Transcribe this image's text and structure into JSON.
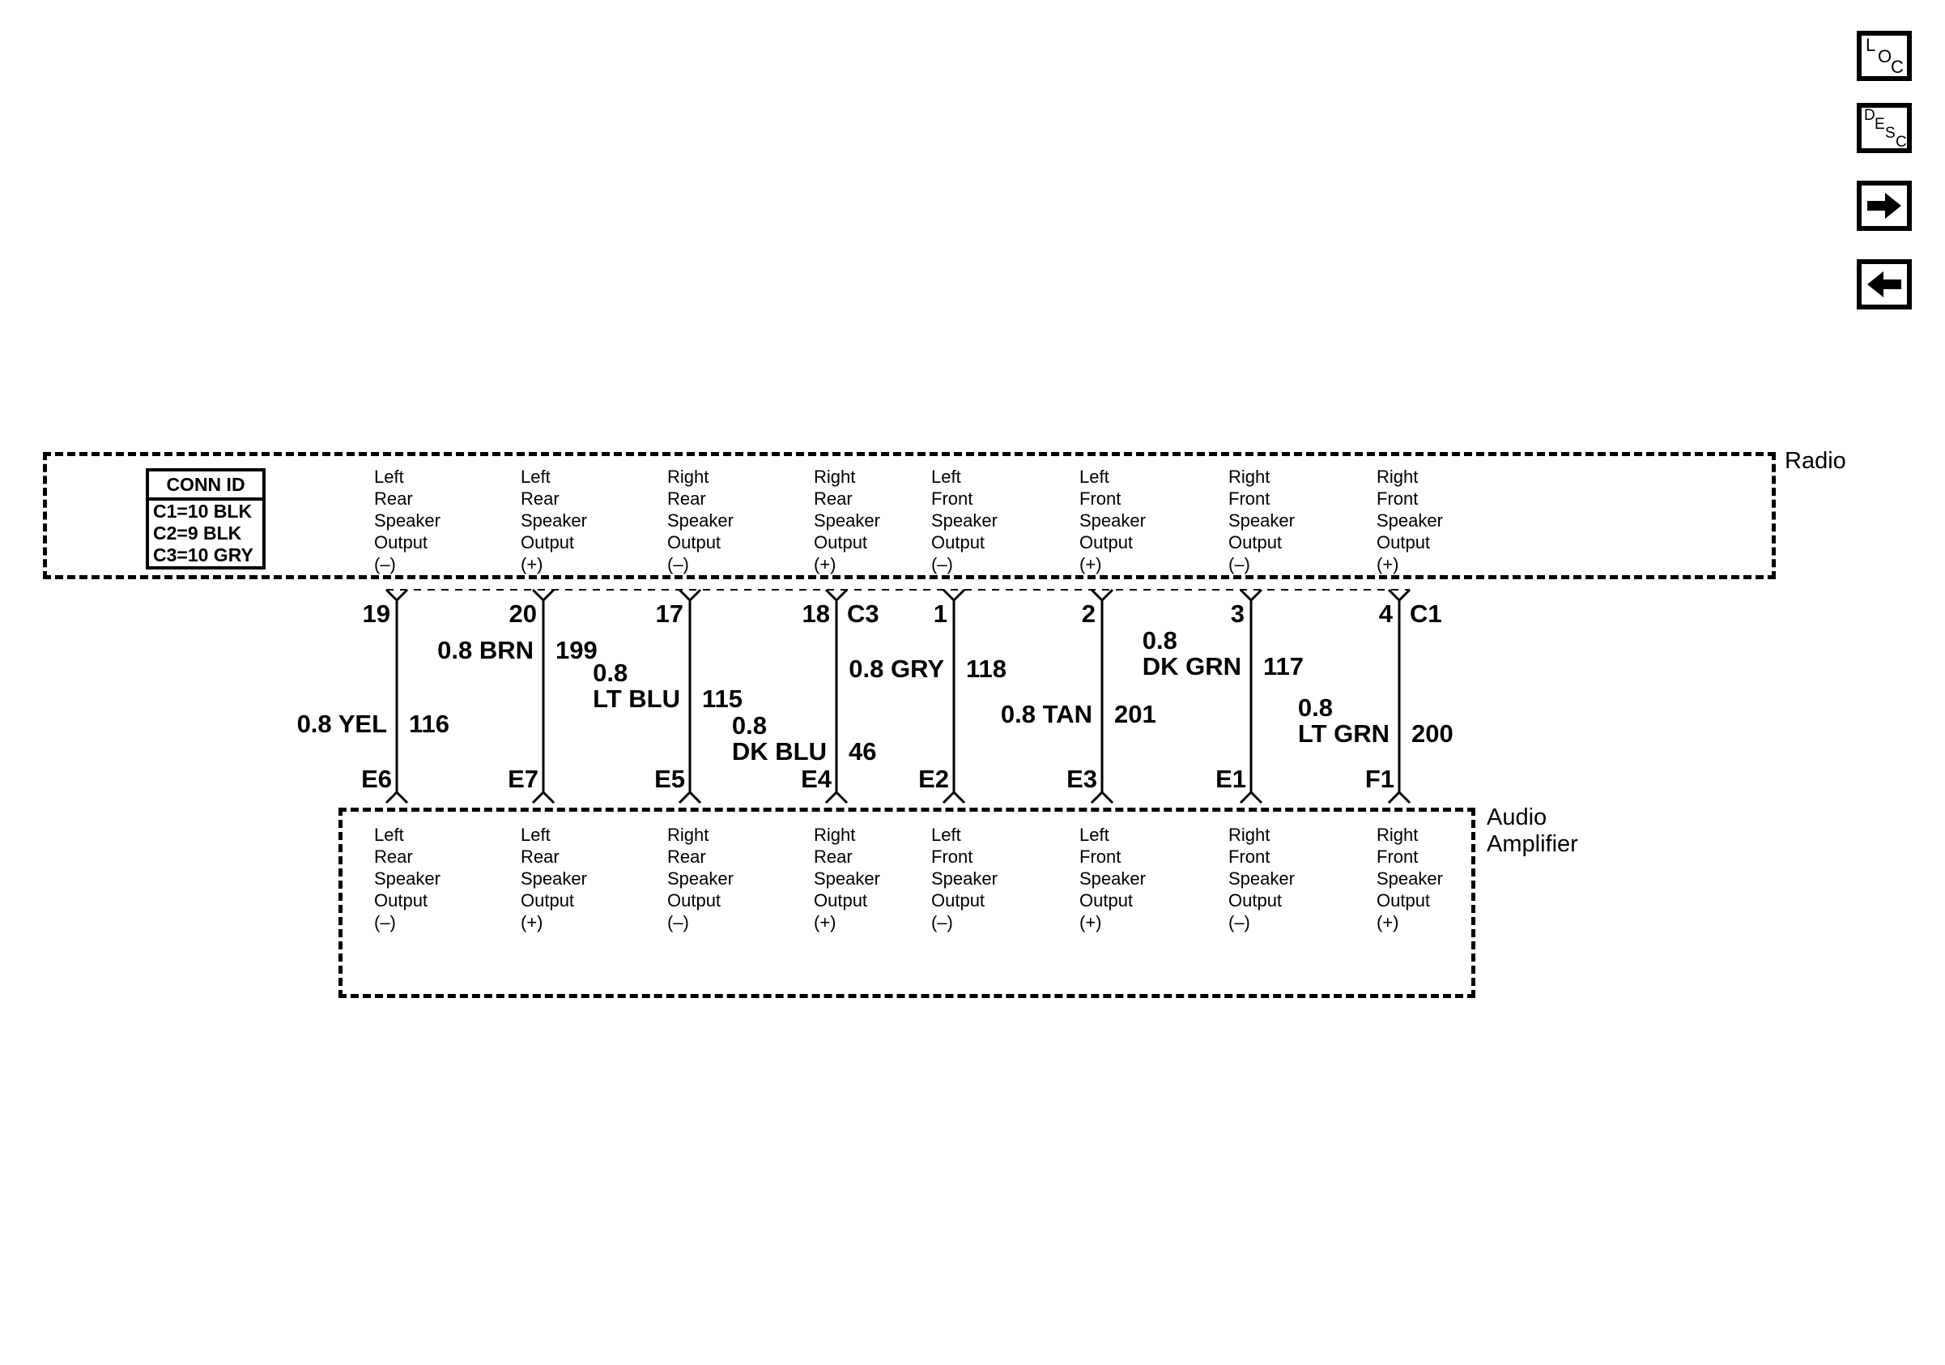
{
  "toolbar": {
    "loc_label": "LOC",
    "desc_label": "DESC",
    "loc_letters": [
      "L",
      "O",
      "C"
    ],
    "desc_letters": [
      "D",
      "E",
      "S",
      "C"
    ]
  },
  "radio": {
    "title": "Radio",
    "conn_id": {
      "header": "CONN ID",
      "rows": [
        "C1=10 BLK",
        "C2=9 BLK",
        "C3=10 GRY"
      ]
    },
    "columns": [
      {
        "lines": [
          "Left",
          "Rear",
          "Speaker",
          "Output",
          "(–)"
        ]
      },
      {
        "lines": [
          "Left",
          "Rear",
          "Speaker",
          "Output",
          "(+)"
        ]
      },
      {
        "lines": [
          "Right",
          "Rear",
          "Speaker",
          "Output",
          "(–)"
        ]
      },
      {
        "lines": [
          "Right",
          "Rear",
          "Speaker",
          "Output",
          "(+)"
        ]
      },
      {
        "lines": [
          "Left",
          "Front",
          "Speaker",
          "Output",
          "(–)"
        ]
      },
      {
        "lines": [
          "Left",
          "Front",
          "Speaker",
          "Output",
          "(+)"
        ]
      },
      {
        "lines": [
          "Right",
          "Front",
          "Speaker",
          "Output",
          "(–)"
        ]
      },
      {
        "lines": [
          "Right",
          "Front",
          "Speaker",
          "Output",
          "(+)"
        ]
      }
    ]
  },
  "amplifier": {
    "title_lines": [
      "Audio",
      "Amplifier"
    ],
    "columns": [
      {
        "lines": [
          "Left",
          "Rear",
          "Speaker",
          "Output",
          "(–)"
        ]
      },
      {
        "lines": [
          "Left",
          "Rear",
          "Speaker",
          "Output",
          "(+)"
        ]
      },
      {
        "lines": [
          "Right",
          "Rear",
          "Speaker",
          "Output",
          "(–)"
        ]
      },
      {
        "lines": [
          "Right",
          "Rear",
          "Speaker",
          "Output",
          "(+)"
        ]
      },
      {
        "lines": [
          "Left",
          "Front",
          "Speaker",
          "Output",
          "(–)"
        ]
      },
      {
        "lines": [
          "Left",
          "Front",
          "Speaker",
          "Output",
          "(+)"
        ]
      },
      {
        "lines": [
          "Right",
          "Front",
          "Speaker",
          "Output",
          "(–)"
        ]
      },
      {
        "lines": [
          "Right",
          "Front",
          "Speaker",
          "Output",
          "(+)"
        ]
      }
    ]
  },
  "wires": [
    {
      "radio_pin": "19",
      "size": "0.8",
      "color": "YEL",
      "circuit": "116",
      "amp_pin": "E6",
      "connector_label": ""
    },
    {
      "radio_pin": "20",
      "size": "0.8",
      "color": "BRN",
      "circuit": "199",
      "amp_pin": "E7",
      "connector_label": ""
    },
    {
      "radio_pin": "17",
      "size": "0.8",
      "color": "LT BLU",
      "circuit": "115",
      "amp_pin": "E5",
      "connector_label": ""
    },
    {
      "radio_pin": "18",
      "size": "0.8",
      "color": "DK BLU",
      "circuit": "46",
      "amp_pin": "E4",
      "connector_label": "C3"
    },
    {
      "radio_pin": "1",
      "size": "0.8",
      "color": "GRY",
      "circuit": "118",
      "amp_pin": "E2",
      "connector_label": ""
    },
    {
      "radio_pin": "2",
      "size": "0.8",
      "color": "TAN",
      "circuit": "201",
      "amp_pin": "E3",
      "connector_label": ""
    },
    {
      "radio_pin": "3",
      "size": "0.8",
      "color": "DK GRN",
      "circuit": "117",
      "amp_pin": "E1",
      "connector_label": ""
    },
    {
      "radio_pin": "4",
      "size": "0.8",
      "color": "LT GRN",
      "circuit": "200",
      "amp_pin": "F1",
      "connector_label": "C1"
    }
  ],
  "colors": {
    "line": "#000000",
    "background": "#ffffff"
  }
}
